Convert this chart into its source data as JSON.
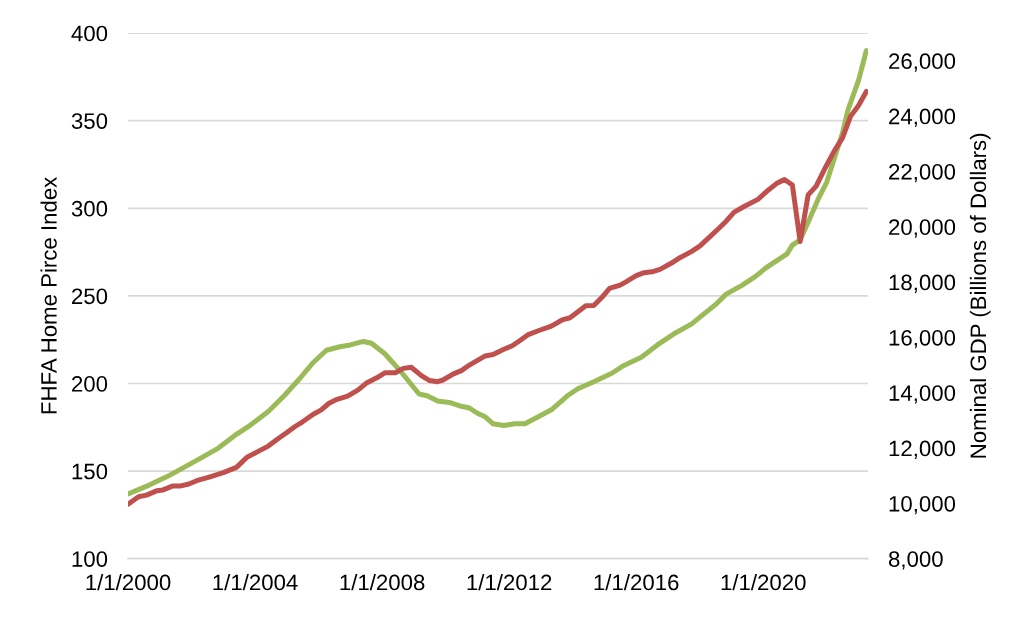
{
  "chart_data": {
    "type": "line",
    "ylabel": "FHFA Home Pirce Index",
    "y2label": "Nominal GDP (Billions of Dollars)",
    "xlim": [
      "2000-01-01",
      "2023-04-20"
    ],
    "xticks": [
      {
        "value": "2000-01-01",
        "label": "1/1/2000"
      },
      {
        "value": "2004-01-01",
        "label": "1/1/2004"
      },
      {
        "value": "2008-01-01",
        "label": "1/1/2008"
      },
      {
        "value": "2012-01-01",
        "label": "1/1/2012"
      },
      {
        "value": "2016-01-01",
        "label": "1/1/2016"
      },
      {
        "value": "2020-01-01",
        "label": "1/1/2020"
      }
    ],
    "ylim": [
      100,
      400
    ],
    "yticks": [
      100,
      150,
      200,
      250,
      300,
      350,
      400
    ],
    "y2lim": [
      8000,
      27000
    ],
    "y2ticks": [
      {
        "value": 8000,
        "label": "8,000"
      },
      {
        "value": 10000,
        "label": "10,000"
      },
      {
        "value": 12000,
        "label": "12,000"
      },
      {
        "value": 14000,
        "label": "14,000"
      },
      {
        "value": 16000,
        "label": "16,000"
      },
      {
        "value": 18000,
        "label": "18,000"
      },
      {
        "value": 20000,
        "label": "20,000"
      },
      {
        "value": 22000,
        "label": "22,000"
      },
      {
        "value": 24000,
        "label": "24,000"
      },
      {
        "value": 26000,
        "label": "26,000"
      }
    ],
    "grid": "y",
    "series": [
      {
        "color": "#9bbb59",
        "x": [
          "2000-01",
          "2000-09",
          "2001-04",
          "2001-10",
          "2002-04",
          "2002-11",
          "2003-06",
          "2003-11",
          "2004-06",
          "2004-12",
          "2005-06",
          "2005-11",
          "2006-04",
          "2006-09",
          "2007-01",
          "2007-06",
          "2007-09",
          "2008-02",
          "2008-08",
          "2009-03",
          "2009-06",
          "2009-10",
          "2010-03",
          "2010-07",
          "2010-10",
          "2011-01",
          "2011-04",
          "2011-07",
          "2011-11",
          "2012-03",
          "2012-07",
          "2012-12",
          "2013-05",
          "2013-11",
          "2014-03",
          "2014-09",
          "2015-04",
          "2015-08",
          "2016-03",
          "2016-09",
          "2017-04",
          "2017-10",
          "2018-02",
          "2018-07",
          "2018-11",
          "2019-05",
          "2019-10",
          "2020-02",
          "2020-06",
          "2020-10",
          "2020-12",
          "2021-03",
          "2021-06",
          "2021-10",
          "2022-01",
          "2022-04",
          "2022-07",
          "2022-09",
          "2023-01",
          "2023-04"
        ],
        "values": [
          137,
          142,
          147,
          152,
          157,
          163,
          171,
          176,
          184,
          193,
          203,
          212,
          219,
          221,
          222,
          224,
          223,
          217,
          207,
          194,
          193,
          190,
          189,
          187,
          186,
          183,
          181,
          177,
          176,
          177,
          177,
          181,
          185,
          193,
          197,
          201,
          206,
          210,
          215,
          222,
          229,
          234,
          239,
          245,
          251,
          256,
          261,
          266,
          270,
          274,
          279,
          282,
          292,
          306,
          315,
          329,
          343,
          356,
          373,
          390
        ]
      },
      {
        "color": "#c0504d",
        "axis": "y2",
        "x": [
          "2000-01",
          "2000-05",
          "2000-08",
          "2000-12",
          "2001-02",
          "2001-06",
          "2001-09",
          "2001-12",
          "2002-03",
          "2002-08",
          "2003-01",
          "2003-06",
          "2003-10",
          "2004-02",
          "2004-06",
          "2004-09",
          "2005-01",
          "2005-04",
          "2005-07",
          "2005-11",
          "2006-02",
          "2006-05",
          "2006-08",
          "2006-12",
          "2007-04",
          "2007-07",
          "2007-11",
          "2008-02",
          "2008-06",
          "2008-09",
          "2008-12",
          "2009-04",
          "2009-07",
          "2009-10",
          "2009-12",
          "2010-04",
          "2010-07",
          "2010-10",
          "2011-04",
          "2011-07",
          "2011-11",
          "2012-02",
          "2012-05",
          "2012-08",
          "2012-12",
          "2013-05",
          "2013-09",
          "2013-12",
          "2014-06",
          "2014-09",
          "2014-12",
          "2015-03",
          "2015-07",
          "2015-09",
          "2016-01",
          "2016-04",
          "2016-07",
          "2016-10",
          "2017-02",
          "2017-05",
          "2017-10",
          "2018-01",
          "2018-04",
          "2018-08",
          "2018-11",
          "2019-02",
          "2019-06",
          "2019-11",
          "2020-03",
          "2020-06",
          "2020-09",
          "2020-12",
          "2021-03",
          "2021-06",
          "2021-09",
          "2021-12",
          "2022-04",
          "2022-07",
          "2022-10",
          "2023-01",
          "2023-04"
        ],
        "values": [
          9970,
          10240,
          10300,
          10460,
          10480,
          10630,
          10630,
          10700,
          10820,
          10960,
          11110,
          11300,
          11670,
          11870,
          12070,
          12290,
          12560,
          12770,
          12950,
          13220,
          13380,
          13620,
          13760,
          13880,
          14100,
          14340,
          14540,
          14720,
          14720,
          14880,
          14920,
          14610,
          14440,
          14400,
          14460,
          14680,
          14800,
          15000,
          15330,
          15380,
          15570,
          15690,
          15880,
          16090,
          16240,
          16410,
          16630,
          16710,
          17140,
          17150,
          17440,
          17770,
          17890,
          18000,
          18230,
          18340,
          18370,
          18460,
          18670,
          18850,
          19110,
          19300,
          19560,
          19920,
          20200,
          20530,
          20740,
          20990,
          21330,
          21560,
          21710,
          21510,
          19470,
          21150,
          21470,
          22050,
          22760,
          23210,
          23990,
          24380,
          24890
        ]
      }
    ]
  }
}
